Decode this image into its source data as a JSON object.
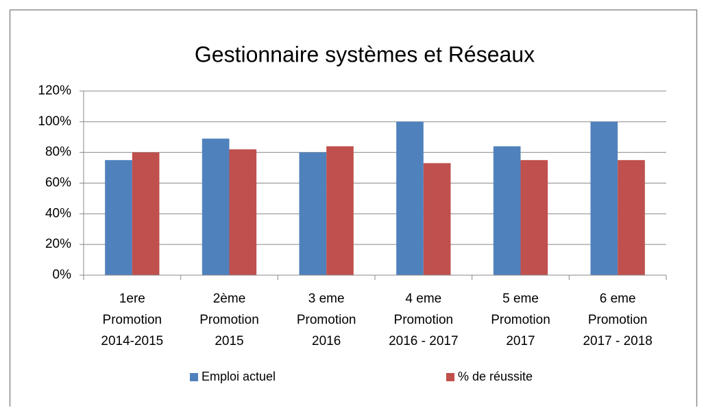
{
  "chart_data": {
    "type": "bar",
    "title": "Gestionnaire systèmes et Réseaux",
    "categories": [
      [
        "1ere",
        "Promotion",
        "2014-2015"
      ],
      [
        "2ème",
        "Promotion",
        "2015"
      ],
      [
        "3 eme",
        "Promotion",
        "2016"
      ],
      [
        "4 eme",
        "Promotion",
        "2016 - 2017"
      ],
      [
        "5 eme",
        "Promotion",
        "2017"
      ],
      [
        "6 eme",
        "Promotion",
        "2017 - 2018"
      ]
    ],
    "series": [
      {
        "name": "Emploi actuel",
        "color": "#4f81bd",
        "values": [
          75,
          89,
          80,
          100,
          84,
          100
        ]
      },
      {
        "name": "% de réussite",
        "color": "#c0504d",
        "values": [
          80,
          82,
          84,
          73,
          75,
          75
        ]
      }
    ],
    "ylim": [
      0,
      120
    ],
    "yticks": [
      {
        "value": 0,
        "label": "0%"
      },
      {
        "value": 20,
        "label": "20%"
      },
      {
        "value": 40,
        "label": "40%"
      },
      {
        "value": 60,
        "label": "60%"
      },
      {
        "value": 80,
        "label": "80%"
      },
      {
        "value": 100,
        "label": "100%"
      },
      {
        "value": 120,
        "label": "120%"
      }
    ],
    "grid": true,
    "legend": "bottom"
  }
}
